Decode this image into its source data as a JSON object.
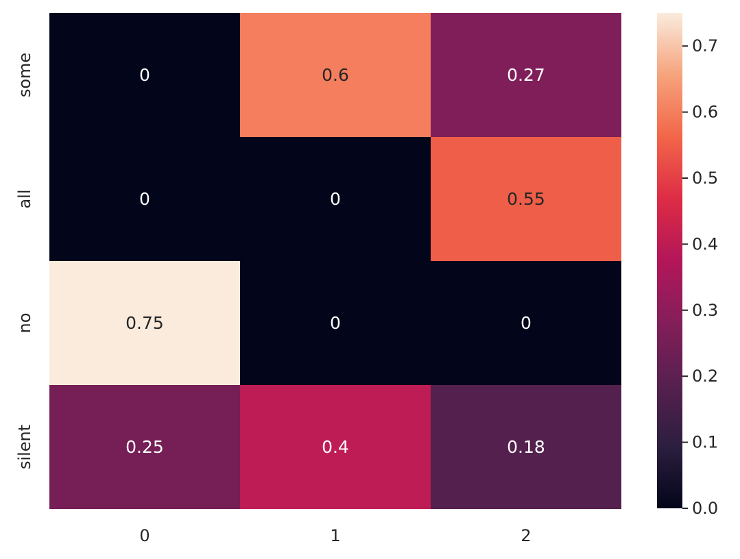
{
  "chart_data": {
    "type": "heatmap",
    "title": "",
    "xlabel": "",
    "ylabel": "",
    "x_categories": [
      "0",
      "1",
      "2"
    ],
    "y_categories": [
      "some",
      "all",
      "no",
      "silent"
    ],
    "values": [
      [
        0,
        0.6,
        0.27
      ],
      [
        0,
        0,
        0.55
      ],
      [
        0.75,
        0,
        0
      ],
      [
        0.25,
        0.4,
        0.18
      ]
    ],
    "annotations": [
      [
        "0",
        "0.6",
        "0.27"
      ],
      [
        "0",
        "0",
        "0.55"
      ],
      [
        "0.75",
        "0",
        "0"
      ],
      [
        "0.25",
        "0.4",
        "0.18"
      ]
    ],
    "colorbar": {
      "range": [
        0,
        0.75
      ],
      "ticks": [
        0.0,
        0.1,
        0.2,
        0.3,
        0.4,
        0.5,
        0.6,
        0.7
      ],
      "tick_labels": [
        "0.0",
        "0.1",
        "0.2",
        "0.3",
        "0.4",
        "0.5",
        "0.6",
        "0.7"
      ]
    },
    "colormap": "rocket",
    "annotation_colors": {
      "dark": "#262626",
      "light": "#ffffff"
    },
    "grid": false
  }
}
